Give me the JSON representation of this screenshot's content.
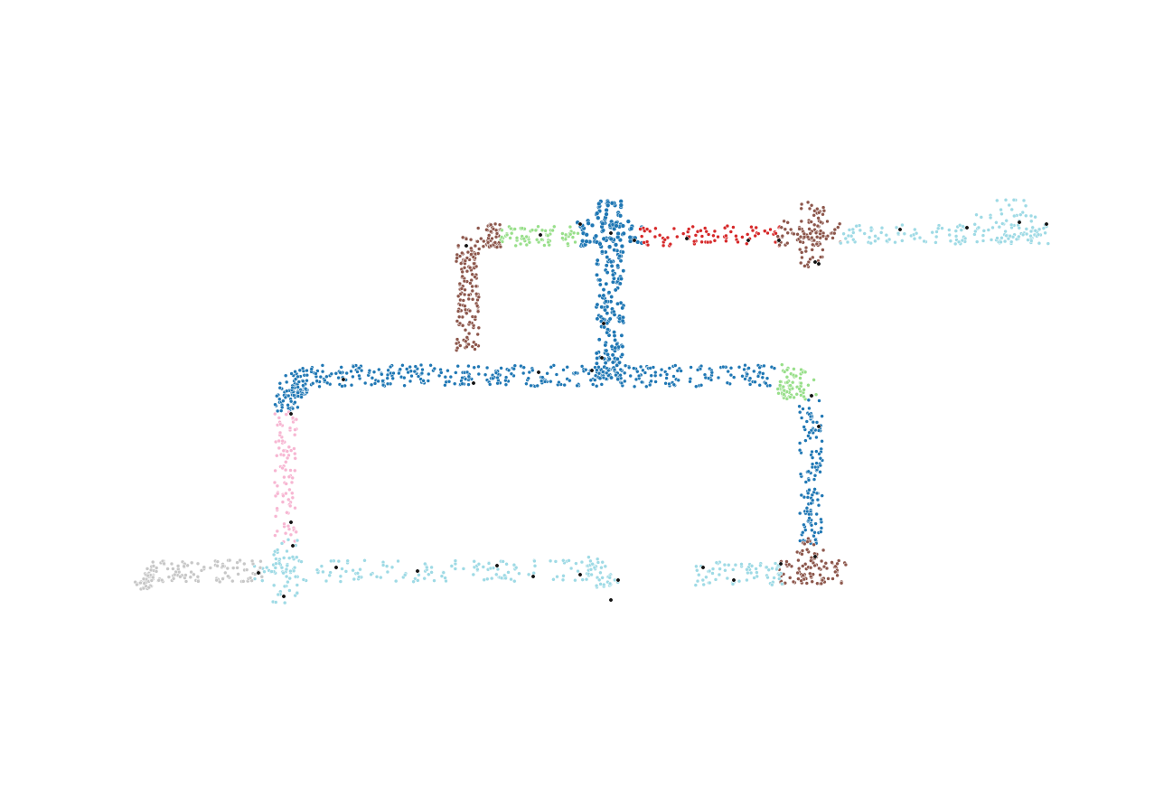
{
  "scene": {
    "type": "point-cloud-segmentation",
    "background": "#ffffff",
    "palette": {
      "blue": "#1f77b4",
      "brown": "#8c564b",
      "light_green": "#98df8a",
      "red": "#d62728",
      "light_cyan": "#9edae5",
      "pink": "#f7b6d2",
      "gray": "#c7c7c7",
      "black": "#111111"
    },
    "segments": [
      {
        "id": "upper-main-pipe",
        "color": "blue"
      },
      {
        "id": "upper-left-elbow",
        "color": "brown"
      },
      {
        "id": "upper-green-pipe",
        "color": "light_green"
      },
      {
        "id": "upper-red-pipe",
        "color": "red"
      },
      {
        "id": "upper-right-flange",
        "color": "brown"
      },
      {
        "id": "upper-right-pipe",
        "color": "light_cyan"
      },
      {
        "id": "vertical-riser",
        "color": "blue"
      },
      {
        "id": "middle-horizontal-pipe",
        "color": "blue"
      },
      {
        "id": "middle-right-elbow",
        "color": "light_green"
      },
      {
        "id": "right-vertical-pipe",
        "color": "blue"
      },
      {
        "id": "lower-right-flange",
        "color": "brown"
      },
      {
        "id": "lower-right-pipe",
        "color": "light_cyan"
      },
      {
        "id": "left-vertical-pipe",
        "color": "pink"
      },
      {
        "id": "bottom-horizontal-pipe",
        "color": "light_cyan"
      },
      {
        "id": "bottom-left-pipe",
        "color": "gray"
      },
      {
        "id": "keypoints",
        "color": "black"
      }
    ]
  }
}
